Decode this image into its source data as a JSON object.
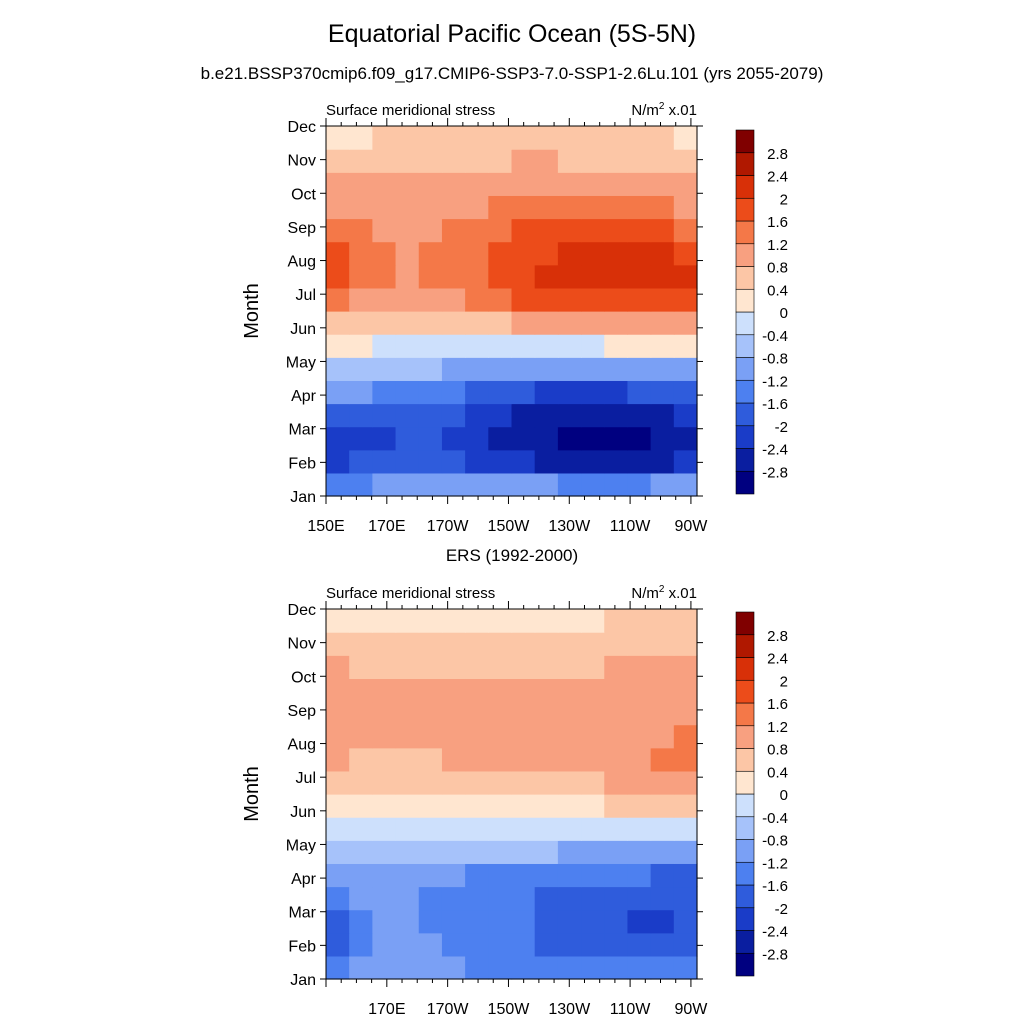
{
  "title": "Equatorial Pacific Ocean (5S-5N)",
  "subtitle": "b.e21.BSSP370cmip6.f09_g17.CMIP6-SSP3-7.0-SSP1-2.6Lu.101 (yrs 2055-2079)",
  "colors": {
    "scale": [
      "#000080",
      "#0a1ea0",
      "#1a3cc8",
      "#2f5cdc",
      "#4d80f0",
      "#7aa0f5",
      "#a6c2fa",
      "#cde0fc",
      "#ffe6d0",
      "#fcc6a6",
      "#f8a080",
      "#f47848",
      "#ec4c1a",
      "#d83008",
      "#b01800",
      "#800000"
    ]
  },
  "chart_data": [
    {
      "type": "heatmap",
      "title": "",
      "left_label": "Surface meridional stress",
      "right_label": "N/m",
      "right_label_sup": "2",
      "right_label_suffix": " x.01",
      "ylabel": "Month",
      "xlabel": "",
      "x_ticks": [
        "150E",
        "170E",
        "170W",
        "150W",
        "130W",
        "110W",
        "90W"
      ],
      "x_values": [
        150,
        170,
        190,
        210,
        230,
        250,
        270
      ],
      "xlim": [
        150,
        272
      ],
      "y_ticks": [
        "Jan",
        "Feb",
        "Mar",
        "Apr",
        "May",
        "Jun",
        "Jul",
        "Aug",
        "Sep",
        "Oct",
        "Nov",
        "Dec"
      ],
      "colorbar_levels": [
        "-2.8",
        "-2.4",
        "-2",
        "-1.6",
        "-1.2",
        "-0.8",
        "-0.4",
        "0",
        "0.4",
        "0.8",
        "1.2",
        "1.6",
        "2",
        "2.4",
        "2.8"
      ],
      "grid_x": [
        "150E",
        "165E",
        "180",
        "165W",
        "150W",
        "135W",
        "120W",
        "105W",
        "90W"
      ],
      "values": [
        [
          -1.0,
          -0.8,
          -0.7,
          -0.6,
          -0.5,
          -0.5,
          -0.5,
          -0.5,
          -0.5
        ],
        [
          -2.2,
          -1.9,
          -1.8,
          -2.0,
          -2.2,
          -2.5,
          -2.7,
          -2.6,
          -2.2
        ],
        [
          -2.3,
          -2.1,
          -2.0,
          -2.2,
          -2.6,
          -3.0,
          -3.0,
          -3.0,
          -2.4
        ],
        [
          -1.2,
          -1.3,
          -1.4,
          -1.7,
          -2.0,
          -2.2,
          -2.2,
          -2.0,
          -1.7
        ],
        [
          -0.3,
          -0.4,
          -0.5,
          -0.6,
          -0.8,
          -0.9,
          -0.9,
          -0.8,
          -0.6
        ],
        [
          0.6,
          0.5,
          0.4,
          0.5,
          0.6,
          0.8,
          1.0,
          1.0,
          1.0
        ],
        [
          1.7,
          1.2,
          1.1,
          1.4,
          1.8,
          2.0,
          2.1,
          2.1,
          1.9
        ],
        [
          2.0,
          1.3,
          1.2,
          1.5,
          1.9,
          2.1,
          2.3,
          2.3,
          2.0
        ],
        [
          1.6,
          1.1,
          1.1,
          1.3,
          1.6,
          1.7,
          1.8,
          1.7,
          1.5
        ],
        [
          1.0,
          0.9,
          0.9,
          1.0,
          1.0,
          1.1,
          1.1,
          1.0,
          0.9
        ],
        [
          0.5,
          0.6,
          0.7,
          0.7,
          0.8,
          0.8,
          0.7,
          0.6,
          0.5
        ],
        [
          -0.1,
          0.3,
          0.5,
          0.6,
          0.7,
          0.6,
          0.5,
          0.4,
          0.3
        ]
      ]
    },
    {
      "type": "heatmap",
      "title": "ERS (1992-2000)",
      "left_label": "Surface meridional stress",
      "right_label": "N/m",
      "right_label_sup": "2",
      "right_label_suffix": " x.01",
      "ylabel": "Month",
      "xlabel": "",
      "x_ticks": [
        "170E",
        "170W",
        "150W",
        "130W",
        "110W",
        "90W"
      ],
      "x_values": [
        170,
        190,
        210,
        230,
        250,
        270
      ],
      "xlim": [
        150,
        272
      ],
      "y_ticks": [
        "Jan",
        "Feb",
        "Mar",
        "Apr",
        "May",
        "Jun",
        "Jul",
        "Aug",
        "Sep",
        "Oct",
        "Nov",
        "Dec"
      ],
      "colorbar_levels": [
        "-2.8",
        "-2.4",
        "-2",
        "-1.6",
        "-1.2",
        "-0.8",
        "-0.4",
        "0",
        "0.4",
        "0.8",
        "1.2",
        "1.6",
        "2",
        "2.4",
        "2.8"
      ],
      "grid_x": [
        "150E",
        "165E",
        "180",
        "165W",
        "150W",
        "135W",
        "120W",
        "105W",
        "90W"
      ],
      "values": [
        [
          -1.3,
          -1.0,
          -0.9,
          -1.1,
          -1.2,
          -1.2,
          -1.3,
          -1.3,
          -1.2
        ],
        [
          -2.0,
          -1.2,
          -1.0,
          -1.3,
          -1.5,
          -1.7,
          -1.8,
          -1.9,
          -1.8
        ],
        [
          -2.1,
          -1.1,
          -1.2,
          -1.4,
          -1.5,
          -1.8,
          -2.0,
          -2.1,
          -2.0
        ],
        [
          -1.1,
          -0.9,
          -1.1,
          -1.3,
          -1.4,
          -1.5,
          -1.5,
          -1.7,
          -1.8
        ],
        [
          -0.3,
          -0.4,
          -0.5,
          -0.6,
          -0.6,
          -0.6,
          -0.7,
          -0.7,
          -0.6
        ],
        [
          0.3,
          0.2,
          0.3,
          0.3,
          0.2,
          0.2,
          0.3,
          0.4,
          0.5
        ],
        [
          0.8,
          0.6,
          0.6,
          0.8,
          0.8,
          0.8,
          0.9,
          1.2,
          1.3
        ],
        [
          1.0,
          0.8,
          0.8,
          1.0,
          0.9,
          0.9,
          1.0,
          1.2,
          1.3
        ],
        [
          1.3,
          0.9,
          0.9,
          1.0,
          0.9,
          0.9,
          1.0,
          1.1,
          1.1
        ],
        [
          1.0,
          0.8,
          0.8,
          0.9,
          0.8,
          0.8,
          0.9,
          1.0,
          1.1
        ],
        [
          0.5,
          0.4,
          0.5,
          0.5,
          0.5,
          0.5,
          0.6,
          0.7,
          0.6
        ],
        [
          0.0,
          0.2,
          0.2,
          0.1,
          0.2,
          0.2,
          0.3,
          0.4,
          0.4
        ]
      ]
    }
  ]
}
